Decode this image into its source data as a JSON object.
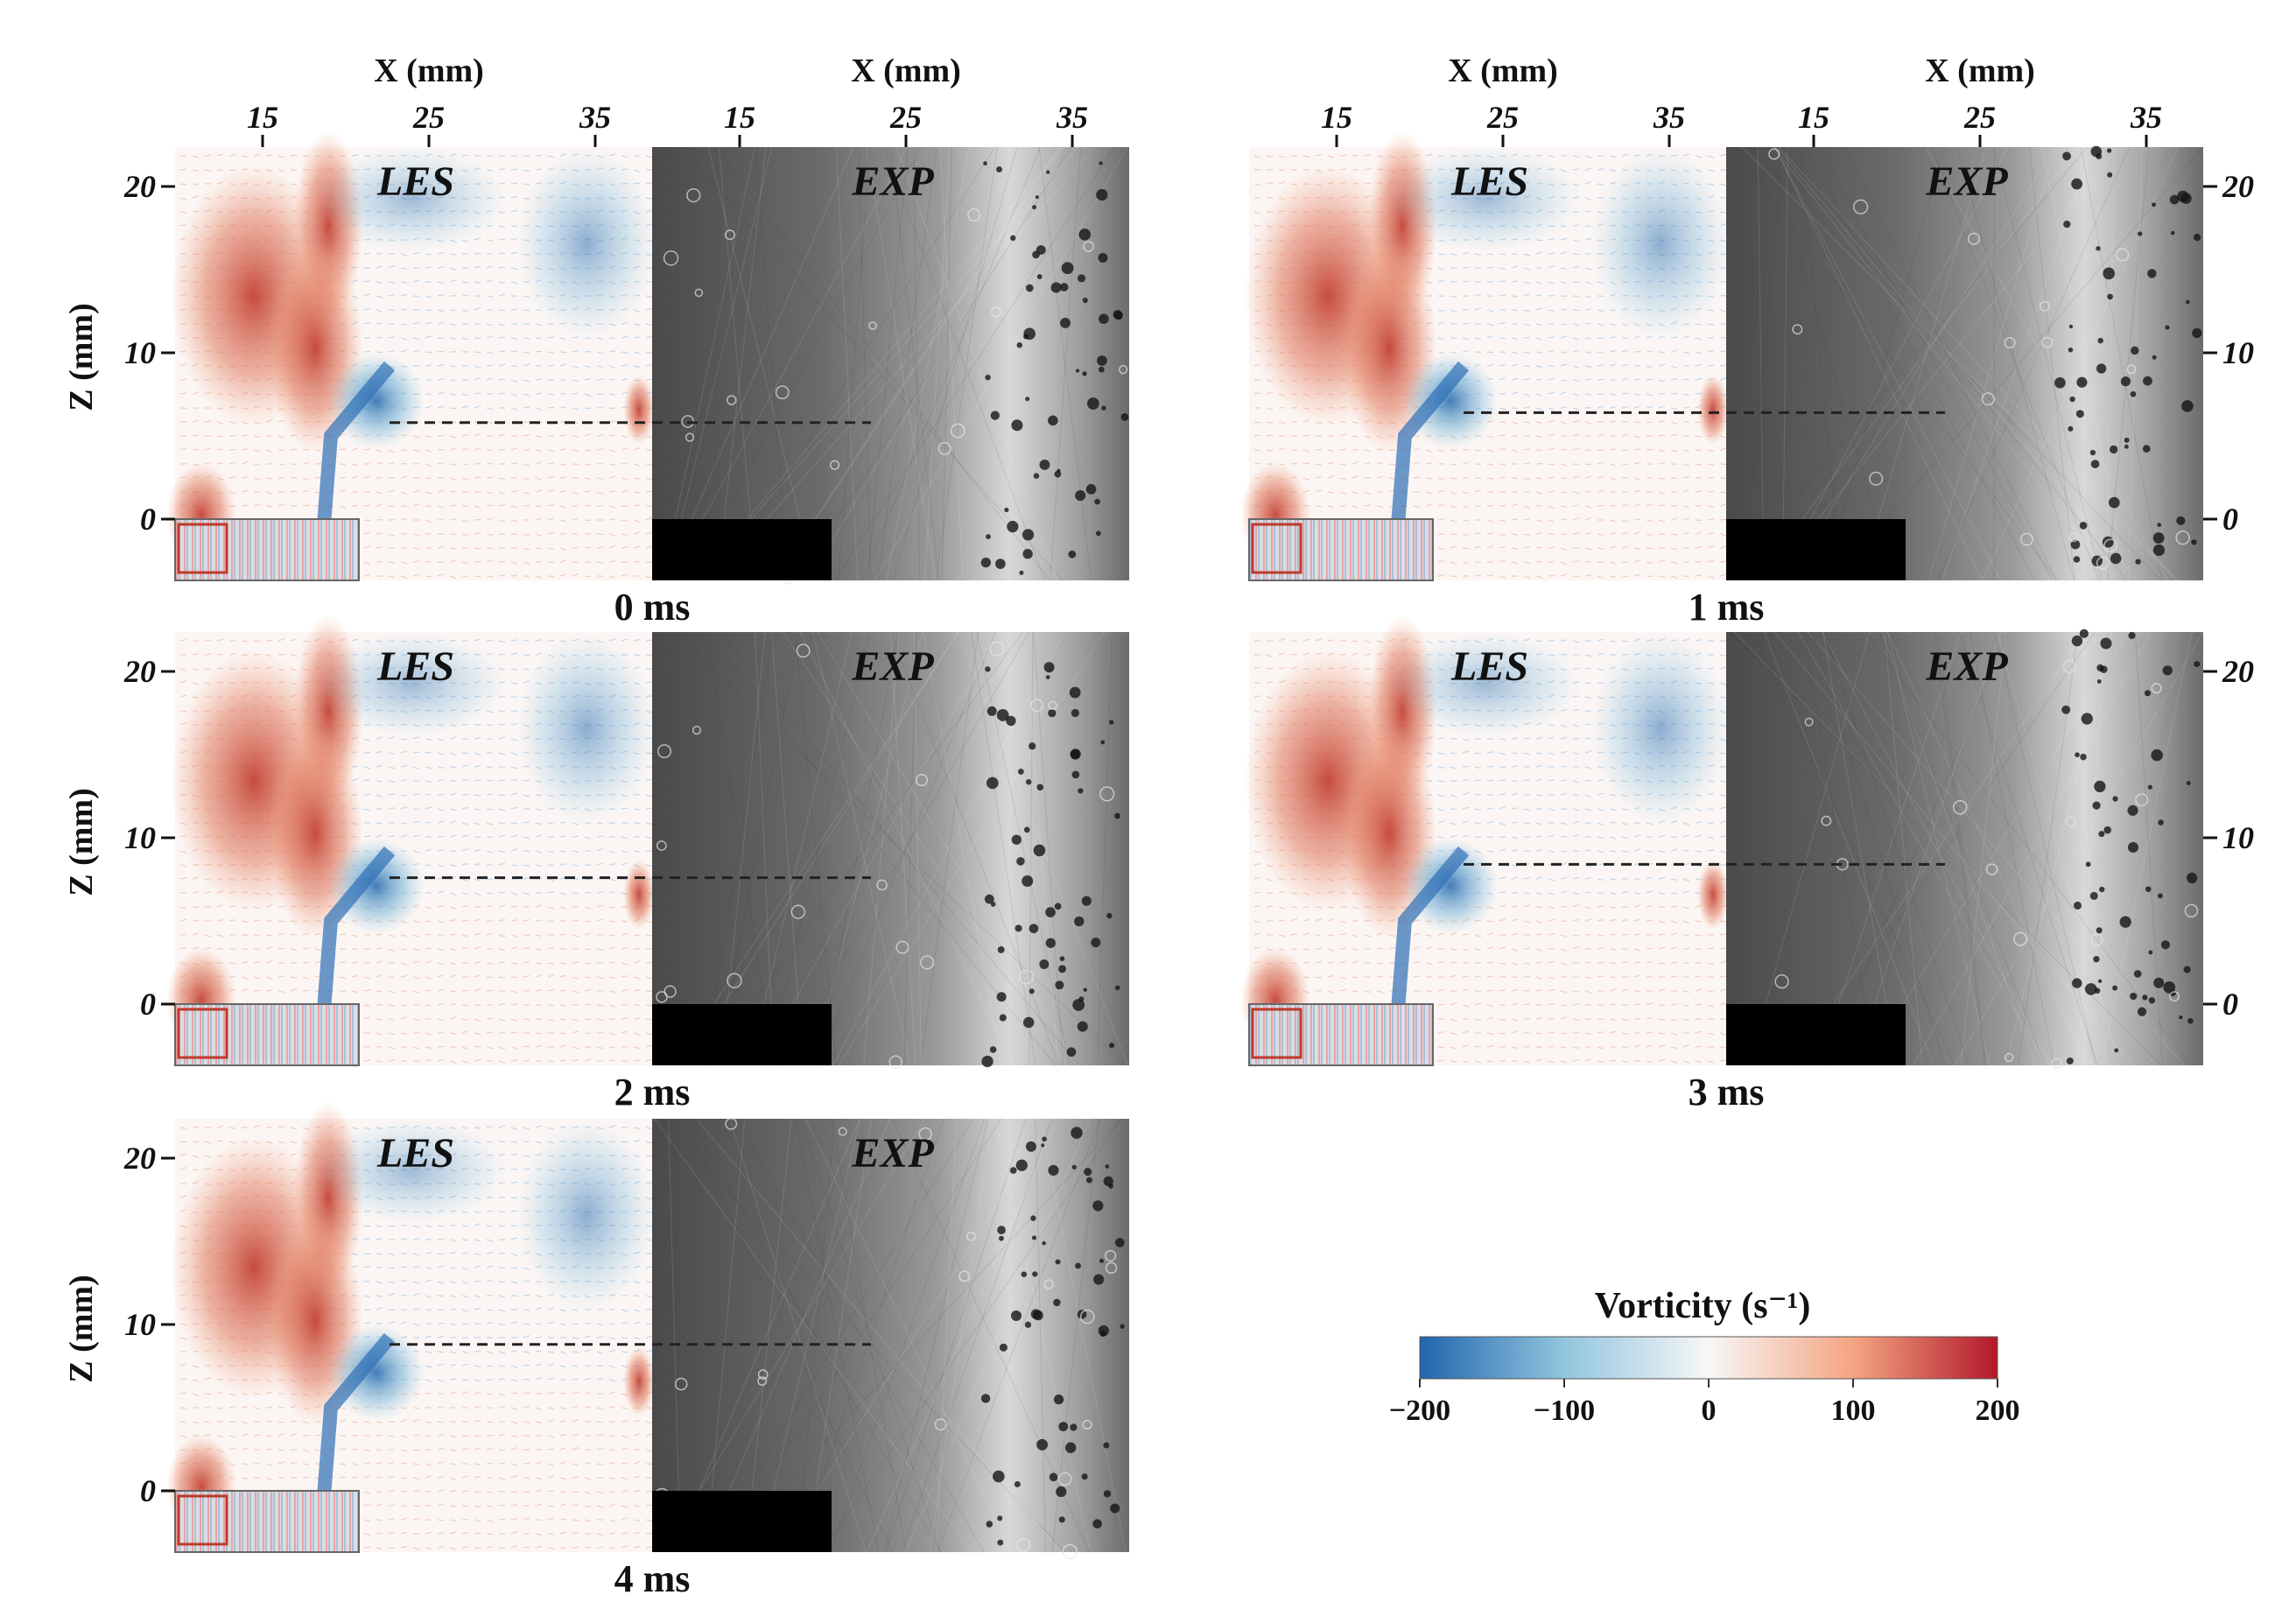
{
  "x_axis_label": "X (mm)",
  "z_axis_label": "Z (mm)",
  "x_ticks": [
    "15",
    "25",
    "35"
  ],
  "z_ticks": [
    "20",
    "10",
    "0"
  ],
  "les_label": "LES",
  "exp_label": "EXP",
  "panels": [
    {
      "time": "0 ms",
      "interface_z_mm": 5.8
    },
    {
      "time": "1 ms",
      "interface_z_mm": 6.4
    },
    {
      "time": "2 ms",
      "interface_z_mm": 7.6
    },
    {
      "time": "3 ms",
      "interface_z_mm": 8.4
    },
    {
      "time": "4 ms",
      "interface_z_mm": 8.8
    }
  ],
  "colorbar": {
    "title": "Vorticity (s⁻¹)",
    "ticks": [
      "−200",
      "−100",
      "0",
      "100",
      "200"
    ],
    "colors": [
      "#2166ac",
      "#92c5de",
      "#f7f7f7",
      "#f4a582",
      "#b2182b"
    ]
  }
}
